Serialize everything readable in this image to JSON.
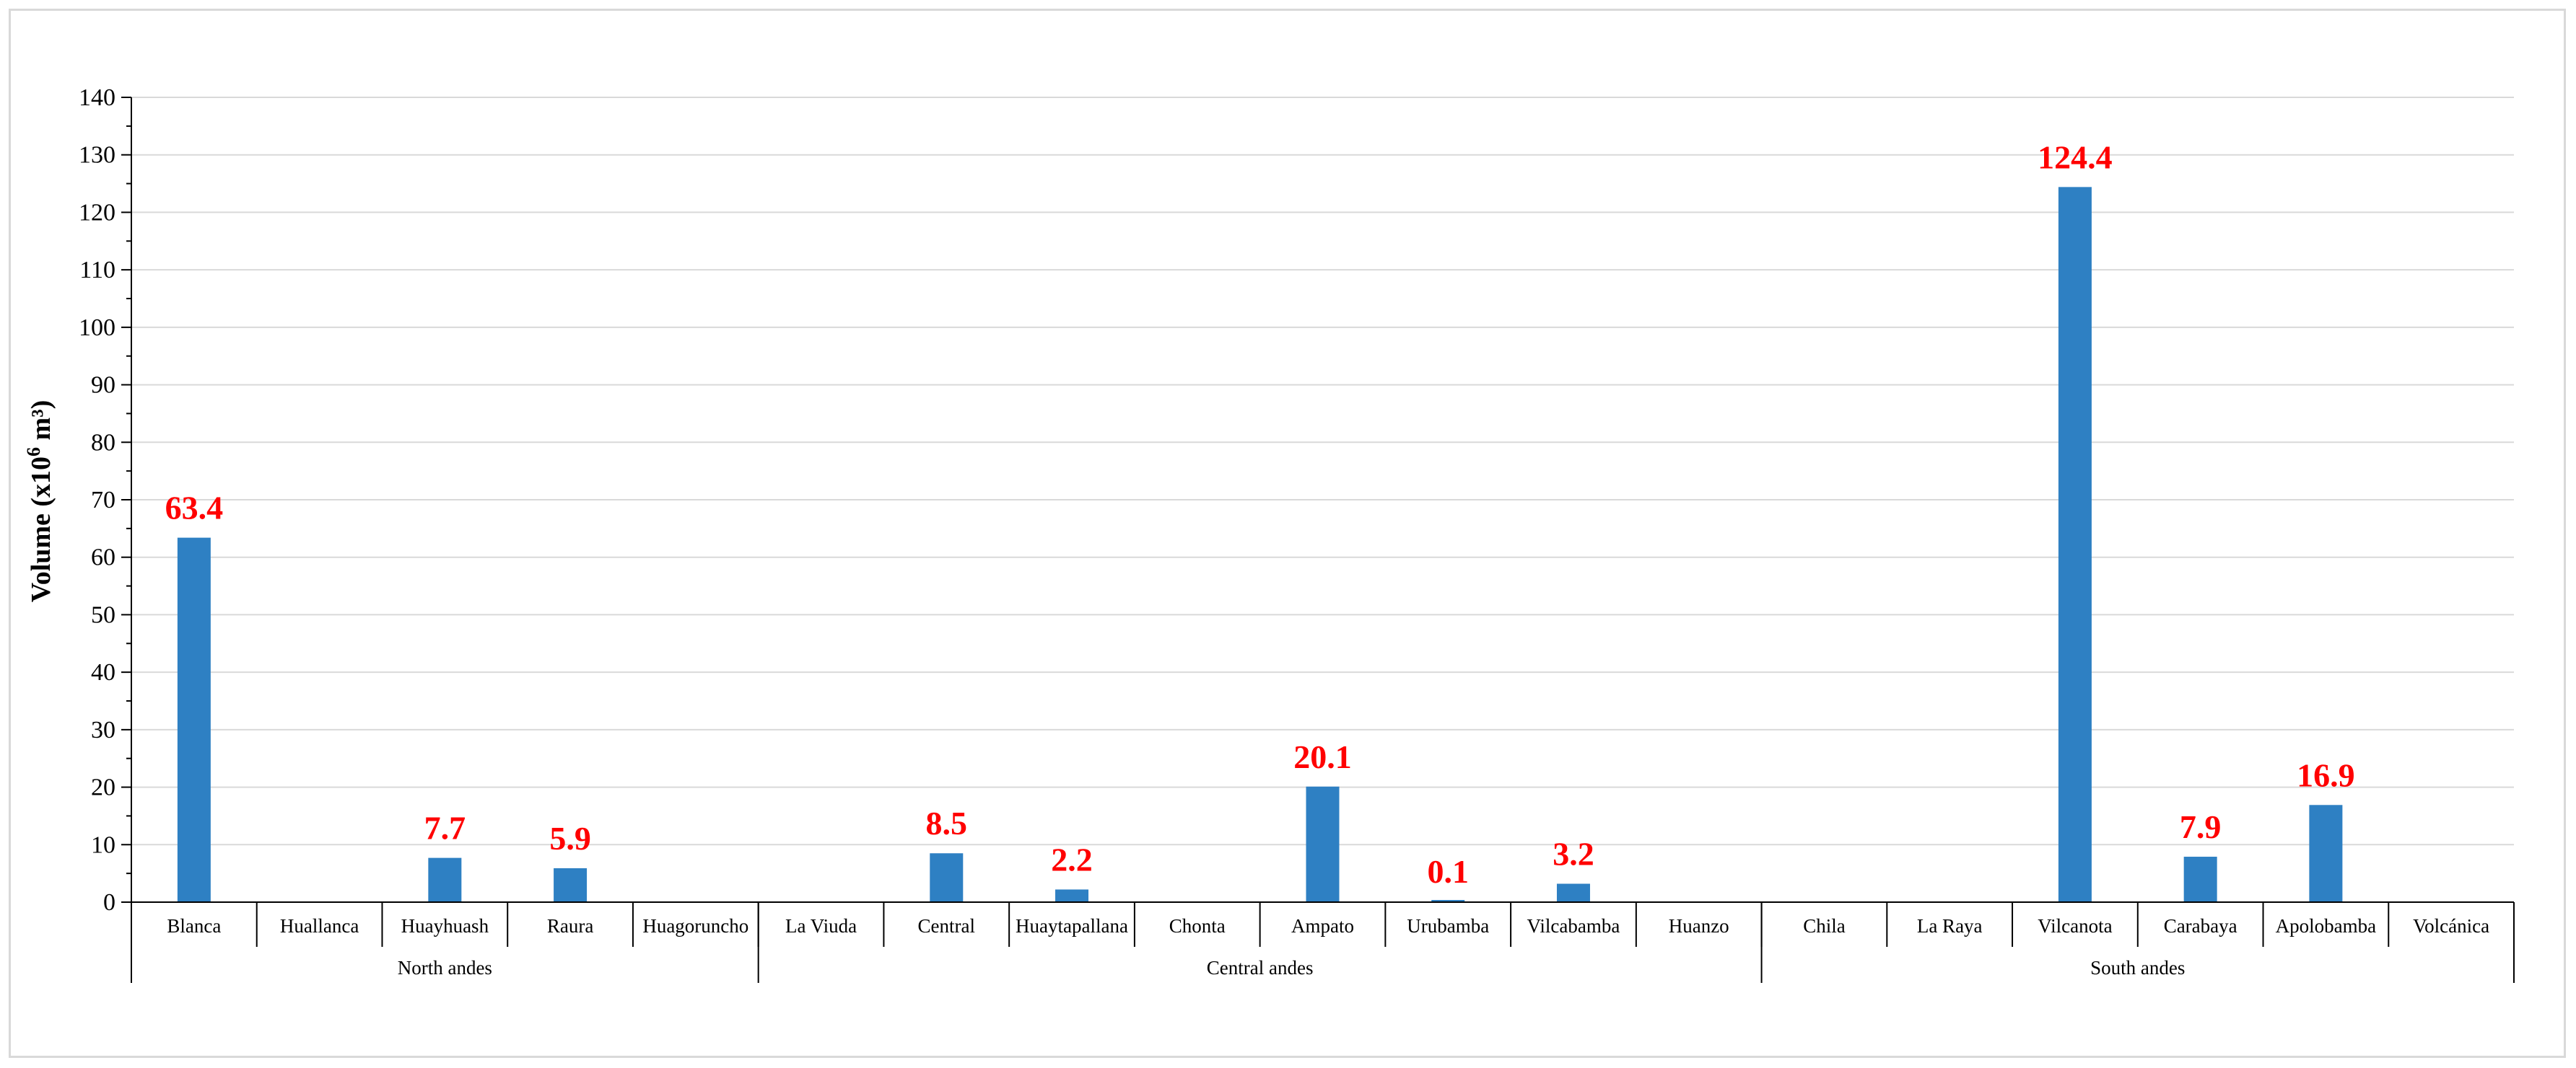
{
  "chart_data": {
    "type": "bar",
    "ylabel": "Volume (x10",
    "ylabel_sup": "6",
    "ylabel_tail": " m³)",
    "ylim": [
      0,
      140
    ],
    "ytick_step": 10,
    "grid": true,
    "bar_color": "#2e80c3",
    "label_color": "#ff0000",
    "categories": [
      "Blanca",
      "Huallanca",
      "Huayhuash",
      "Raura",
      "Huagoruncho",
      "La Viuda",
      "Central",
      "Huaytapallana",
      "Chonta",
      "Ampato",
      "Urubamba",
      "Vilcabamba",
      "Huanzo",
      "Chila",
      "La Raya",
      "Vilcanota",
      "Carabaya",
      "Apolobamba",
      "Volcánica"
    ],
    "values": [
      63.4,
      null,
      7.7,
      5.9,
      null,
      null,
      8.5,
      2.2,
      null,
      20.1,
      0.1,
      3.2,
      null,
      null,
      null,
      124.4,
      7.9,
      16.9,
      null
    ],
    "data_labels": [
      "63.4",
      "",
      "7.7",
      "5.9",
      "",
      "",
      "8.5",
      "2.2",
      "",
      "20.1",
      "0.1",
      "3.2",
      "",
      "",
      "",
      "124.4",
      "7.9",
      "16.9",
      ""
    ],
    "groups": [
      {
        "label": "North andes",
        "start": 0,
        "end": 4
      },
      {
        "label": "Central andes",
        "start": 5,
        "end": 12
      },
      {
        "label": "South andes",
        "start": 13,
        "end": 18
      }
    ]
  }
}
